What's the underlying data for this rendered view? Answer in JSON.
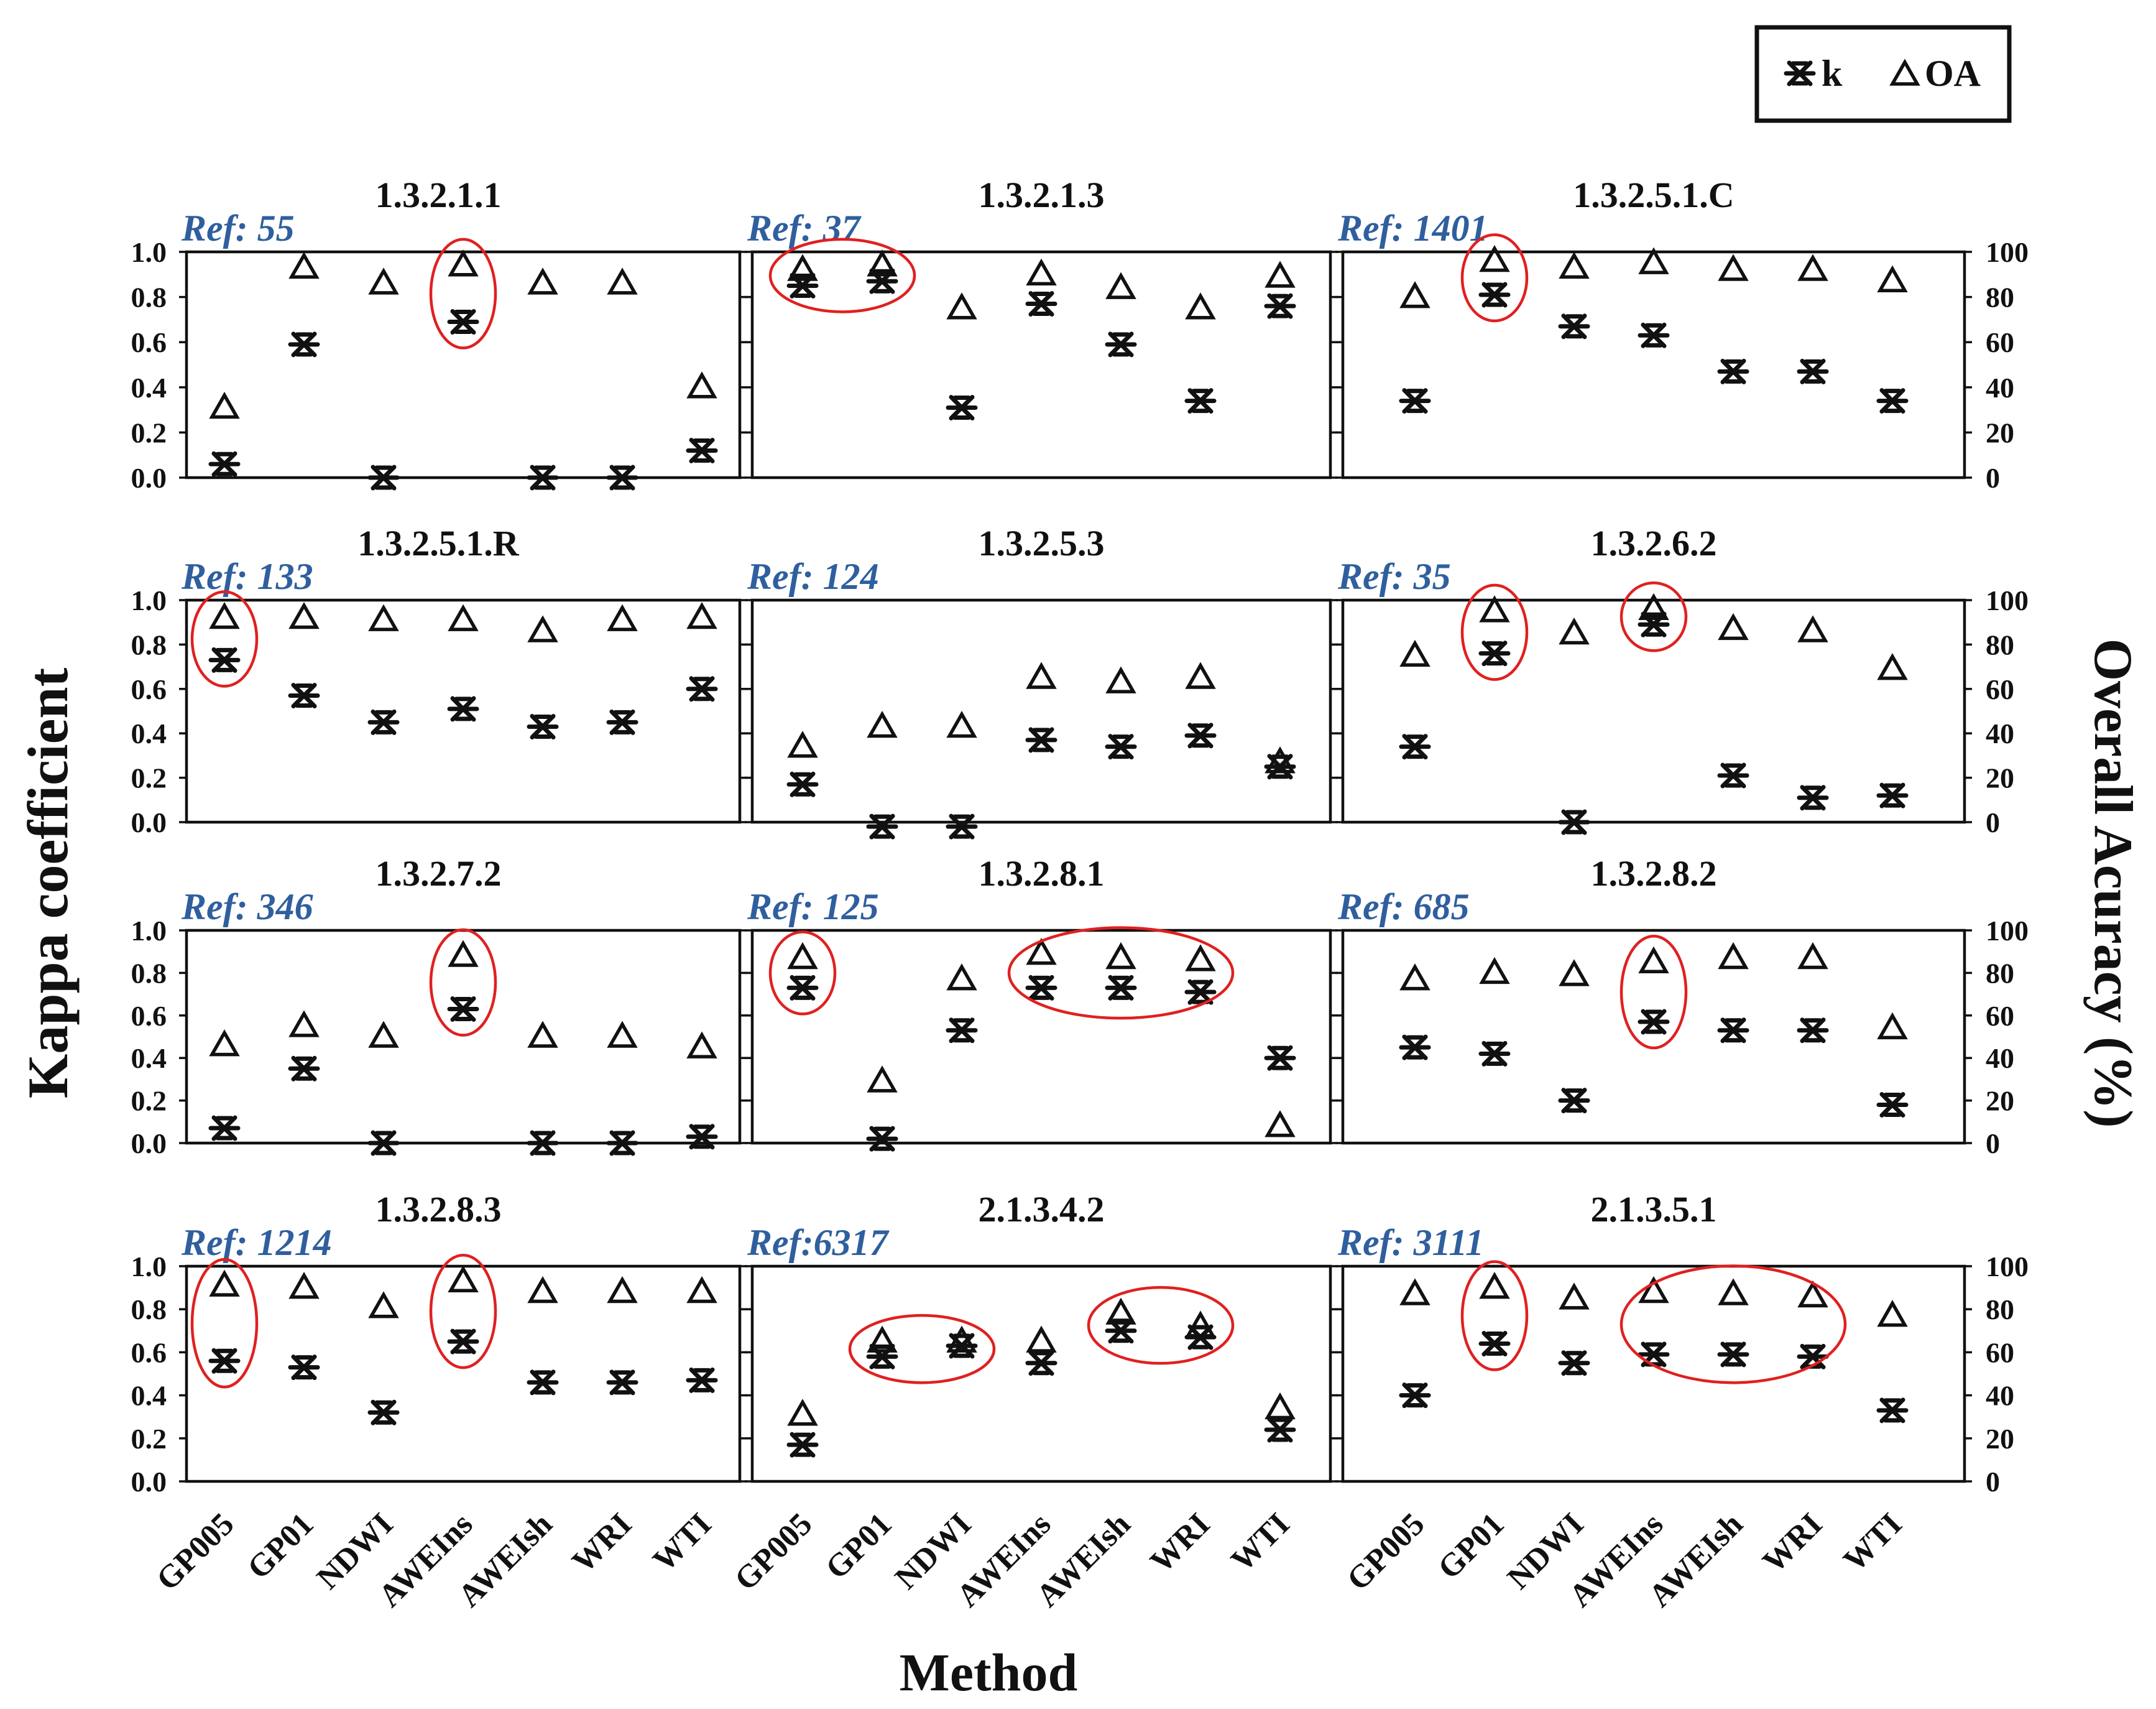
{
  "chart_data": {
    "type": "scatter",
    "categories": [
      "GP005",
      "GP01",
      "NDWI",
      "AWEIns",
      "AWEIsh",
      "WRI",
      "WTI"
    ],
    "xlabel": "Method",
    "ylabel": "Kappa coefficient",
    "y2label": "Overall Acuracy (%)",
    "ylim": [
      0,
      1
    ],
    "y2lim": [
      0,
      100
    ],
    "yticks": [
      "0.0",
      "0.2",
      "0.4",
      "0.6",
      "0.8",
      "1.0"
    ],
    "y2ticks": [
      "0",
      "20",
      "40",
      "60",
      "80",
      "100"
    ],
    "legend": {
      "position": "top-right",
      "k_label": "k",
      "oa_label": "OA"
    },
    "highlight_color": "#e02020",
    "series_names": [
      "k",
      "OA"
    ],
    "panels": [
      {
        "title": "1.3.2.1.1",
        "ref": "Ref: 55",
        "k": [
          0.06,
          0.59,
          0.0,
          0.69,
          0.0,
          0.0,
          0.12
        ],
        "oa": [
          31,
          93,
          86,
          94,
          86,
          86,
          40
        ],
        "highlight": [
          [
            3,
            3
          ]
        ]
      },
      {
        "title": "1.3.2.1.3",
        "ref": "Ref: 37",
        "k": [
          0.85,
          0.87,
          0.31,
          0.77,
          0.59,
          0.34,
          0.76
        ],
        "oa": [
          92,
          94,
          75,
          90,
          84,
          75,
          89
        ],
        "highlight": [
          [
            0,
            1
          ]
        ]
      },
      {
        "title": "1.3.2.5.1.C",
        "ref": "Ref: 1401",
        "k": [
          0.34,
          0.81,
          0.67,
          0.63,
          0.47,
          0.47,
          0.34
        ],
        "oa": [
          80,
          96,
          93,
          95,
          92,
          92,
          87
        ],
        "highlight": [
          [
            1,
            1
          ]
        ]
      },
      {
        "title": "1.3.2.5.1.R",
        "ref": "Ref: 133",
        "k": [
          0.73,
          0.57,
          0.45,
          0.51,
          0.43,
          0.45,
          0.6
        ],
        "oa": [
          92,
          92,
          91,
          91,
          86,
          91,
          92
        ],
        "highlight": [
          [
            0,
            0
          ]
        ]
      },
      {
        "title": "1.3.2.5.3",
        "ref": "Ref: 124",
        "k": [
          0.17,
          -0.02,
          -0.02,
          0.37,
          0.34,
          0.39,
          0.25
        ],
        "oa": [
          34,
          43,
          43,
          65,
          63,
          65,
          27
        ],
        "highlight": []
      },
      {
        "title": "1.3.2.6.2",
        "ref": "Ref: 35",
        "k": [
          0.34,
          0.76,
          0.0,
          0.89,
          0.21,
          0.11,
          0.12
        ],
        "oa": [
          75,
          95,
          85,
          96,
          87,
          86,
          69
        ],
        "highlight": [
          [
            1,
            1
          ],
          [
            3,
            3
          ]
        ]
      },
      {
        "title": "1.3.2.7.2",
        "ref": "Ref: 346",
        "k": [
          0.07,
          0.35,
          0.0,
          0.63,
          0.0,
          0.0,
          0.03
        ],
        "oa": [
          46,
          55,
          50,
          88,
          50,
          50,
          45
        ],
        "highlight": [
          [
            3,
            3
          ]
        ]
      },
      {
        "title": "1.3.2.8.1",
        "ref": "Ref: 125",
        "k": [
          0.73,
          0.02,
          0.53,
          0.73,
          0.73,
          0.71,
          0.4
        ],
        "oa": [
          87,
          29,
          77,
          89,
          87,
          86,
          8
        ],
        "highlight": [
          [
            0,
            0
          ],
          [
            3,
            5
          ]
        ]
      },
      {
        "title": "1.3.2.8.2",
        "ref": "Ref: 685",
        "k": [
          0.45,
          0.42,
          0.2,
          0.57,
          0.53,
          0.53,
          0.18
        ],
        "oa": [
          77,
          80,
          79,
          85,
          87,
          87,
          54
        ],
        "highlight": [
          [
            3,
            3
          ]
        ]
      },
      {
        "title": "1.3.2.8.3",
        "ref": "Ref: 1214",
        "k": [
          0.56,
          0.53,
          0.32,
          0.65,
          0.46,
          0.46,
          0.47
        ],
        "oa": [
          91,
          90,
          81,
          93,
          88,
          88,
          88
        ],
        "highlight": [
          [
            0,
            0
          ],
          [
            3,
            3
          ]
        ]
      },
      {
        "title": "2.1.3.4.2",
        "ref": "Ref:6317",
        "k": [
          0.17,
          0.58,
          0.63,
          0.55,
          0.7,
          0.67,
          0.24
        ],
        "oa": [
          31,
          65,
          65,
          65,
          78,
          72,
          34
        ],
        "highlight": [
          [
            1,
            2
          ],
          [
            4,
            5
          ]
        ]
      },
      {
        "title": "2.1.3.5.1",
        "ref": "Ref: 3111",
        "k": [
          0.4,
          0.64,
          0.55,
          0.59,
          0.59,
          0.58,
          0.33
        ],
        "oa": [
          87,
          90,
          85,
          88,
          87,
          86,
          77
        ],
        "highlight": [
          [
            1,
            1
          ],
          [
            3,
            5
          ]
        ]
      }
    ]
  }
}
